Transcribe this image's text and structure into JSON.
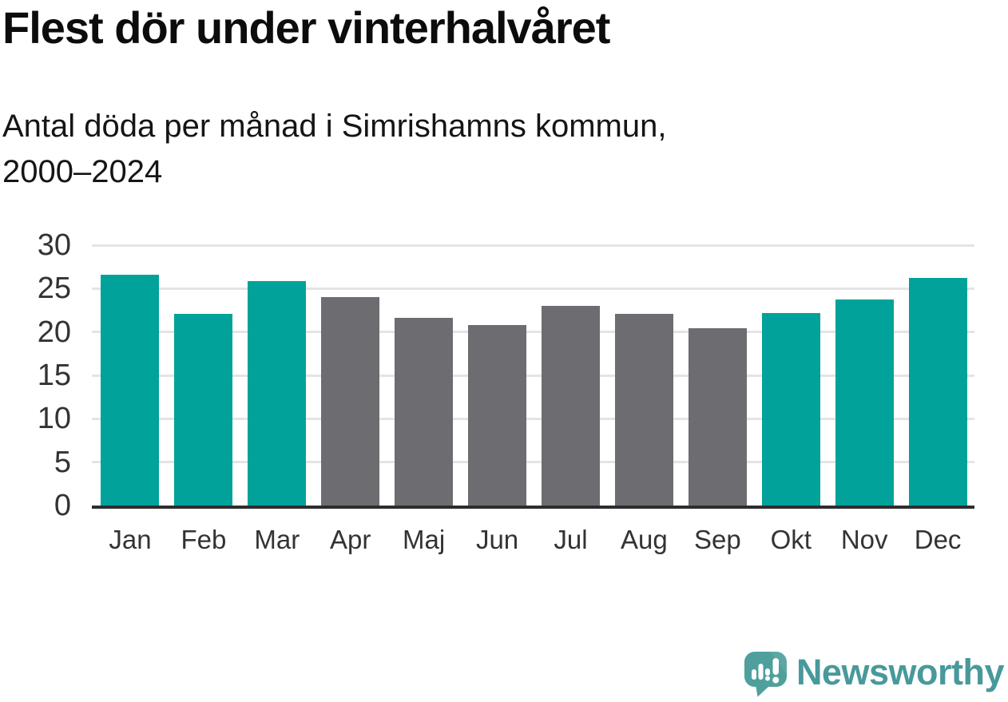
{
  "header": {
    "title": "Flest dör under vinterhalvåret",
    "subtitle": "Antal döda per månad i Simrishamns kommun,\n2000–2024"
  },
  "chart_data": {
    "type": "bar",
    "title": "Flest dör under vinterhalvåret",
    "subtitle": "Antal döda per månad i Simrishamns kommun, 2000–2024",
    "categories": [
      "Jan",
      "Feb",
      "Mar",
      "Apr",
      "Maj",
      "Jun",
      "Jul",
      "Aug",
      "Sep",
      "Okt",
      "Nov",
      "Dec"
    ],
    "values": [
      26.6,
      22.1,
      25.9,
      24.0,
      21.6,
      20.8,
      23.0,
      22.1,
      20.4,
      22.2,
      23.7,
      26.2
    ],
    "bar_colors": [
      "#00a29a",
      "#00a29a",
      "#00a29a",
      "#6c6c71",
      "#6c6c71",
      "#6c6c71",
      "#6c6c71",
      "#6c6c71",
      "#6c6c71",
      "#00a29a",
      "#00a29a",
      "#00a29a"
    ],
    "xlabel": "",
    "ylabel": "",
    "ylim": [
      0,
      30
    ],
    "yticks": [
      0,
      5,
      10,
      15,
      20,
      25,
      30
    ],
    "grid": "horizontal",
    "legend": "none",
    "highlight_color": "#00a29a",
    "muted_color": "#6c6c71",
    "gridline_color": "#e4e4e4",
    "axis_line_color": "#2d2d2d",
    "tick_label_color": "#333333"
  },
  "footer": {
    "brand": "Newsworthy",
    "brand_color": "#48999b",
    "logo_icon": "speech-bubble-bar-chart-exclamation-icon",
    "logo_color": "#4fa09d"
  }
}
